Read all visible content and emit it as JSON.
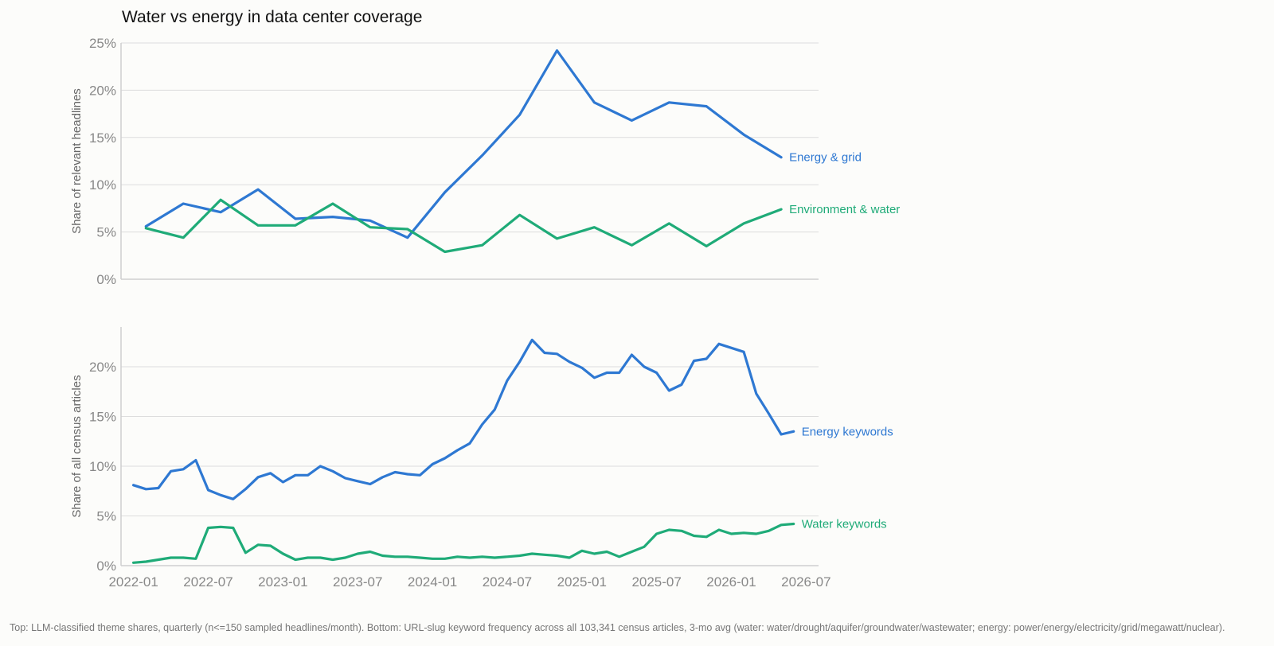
{
  "title": "Water vs energy in data center coverage",
  "caption": "Top: LLM-classified theme shares, quarterly (n<=150 sampled headlines/month). Bottom: URL-slug keyword frequency across all 103,341 census articles, 3-mo avg (water: water/drought/aquifer/groundwater/wastewater; energy: power/energy/electricity/grid/megawatt/nuclear).",
  "chart_data": [
    {
      "type": "line",
      "title": "Water vs energy in data center coverage",
      "ylabel": "Share of relevant headlines",
      "ylim": [
        0,
        25
      ],
      "y_ticks": [
        "0%",
        "5%",
        "10%",
        "15%",
        "20%",
        "25%"
      ],
      "y_tick_values": [
        0,
        5,
        10,
        15,
        20,
        25
      ],
      "grid": true,
      "legend": "direct labels at line ends (right)",
      "x_range": [
        "2021-12-01",
        "2026-08-01"
      ],
      "series": [
        {
          "name": "Energy & grid",
          "color": "#2e78d2",
          "x": [
            "2022-02",
            "2022-05",
            "2022-08",
            "2022-11",
            "2023-02",
            "2023-05",
            "2023-08",
            "2023-11",
            "2024-02",
            "2024-05",
            "2024-08",
            "2024-11",
            "2025-02",
            "2025-05",
            "2025-08",
            "2025-11",
            "2026-02",
            "2026-05"
          ],
          "values": [
            5.6,
            8.0,
            7.1,
            9.5,
            6.4,
            6.6,
            6.2,
            4.4,
            9.2,
            13.1,
            17.4,
            24.2,
            18.7,
            16.8,
            18.7,
            18.3,
            15.3,
            12.9
          ]
        },
        {
          "name": "Environment & water",
          "color": "#1fab78",
          "x": [
            "2022-02",
            "2022-05",
            "2022-08",
            "2022-11",
            "2023-02",
            "2023-05",
            "2023-08",
            "2023-11",
            "2024-02",
            "2024-05",
            "2024-08",
            "2024-11",
            "2025-02",
            "2025-05",
            "2025-08",
            "2025-11",
            "2026-02",
            "2026-05"
          ],
          "values": [
            5.4,
            4.4,
            8.4,
            5.7,
            5.7,
            8.0,
            5.5,
            5.3,
            2.9,
            3.6,
            6.8,
            4.3,
            5.5,
            3.6,
            5.9,
            3.5,
            5.9,
            7.4
          ]
        }
      ]
    },
    {
      "type": "line",
      "ylabel": "Share of all census articles",
      "ylim": [
        0,
        24
      ],
      "y_ticks": [
        "0%",
        "5%",
        "10%",
        "15%",
        "20%"
      ],
      "y_tick_values": [
        0,
        5,
        10,
        15,
        20
      ],
      "x_ticks": [
        "2022-01",
        "2022-07",
        "2023-01",
        "2023-07",
        "2024-01",
        "2024-07",
        "2025-01",
        "2025-07",
        "2026-01",
        "2026-07"
      ],
      "x_range": [
        "2021-12-01",
        "2026-08-01"
      ],
      "grid": true,
      "legend": "direct labels at line ends (right)",
      "series": [
        {
          "name": "Energy keywords",
          "color": "#2e78d2",
          "x": [
            "2022-01",
            "2022-02",
            "2022-03",
            "2022-04",
            "2022-05",
            "2022-06",
            "2022-07",
            "2022-08",
            "2022-09",
            "2022-10",
            "2022-11",
            "2022-12",
            "2023-01",
            "2023-02",
            "2023-03",
            "2023-04",
            "2023-05",
            "2023-06",
            "2023-07",
            "2023-08",
            "2023-09",
            "2023-10",
            "2023-11",
            "2023-12",
            "2024-01",
            "2024-02",
            "2024-03",
            "2024-04",
            "2024-05",
            "2024-06",
            "2024-07",
            "2024-08",
            "2024-09",
            "2024-10",
            "2024-11",
            "2024-12",
            "2025-01",
            "2025-02",
            "2025-03",
            "2025-04",
            "2025-05",
            "2025-06",
            "2025-07",
            "2025-08",
            "2025-09",
            "2025-10",
            "2025-11",
            "2025-12",
            "2026-01",
            "2026-02",
            "2026-03",
            "2026-04",
            "2026-05",
            "2026-06"
          ],
          "values": [
            8.1,
            7.7,
            7.8,
            9.5,
            9.7,
            10.6,
            7.6,
            7.1,
            6.7,
            7.7,
            8.9,
            9.3,
            8.4,
            9.1,
            9.1,
            10.0,
            9.5,
            8.8,
            8.5,
            8.2,
            8.9,
            9.4,
            9.2,
            9.1,
            10.2,
            10.8,
            11.6,
            12.3,
            14.2,
            15.7,
            18.6,
            20.5,
            22.7,
            21.4,
            21.3,
            20.5,
            19.9,
            18.9,
            19.4,
            19.4,
            21.2,
            20.0,
            19.4,
            17.6,
            18.2,
            20.6,
            20.8,
            22.3,
            21.9,
            21.5,
            17.3,
            15.3,
            13.2,
            13.5
          ]
        },
        {
          "name": "Water keywords",
          "color": "#1fab78",
          "x": [
            "2022-01",
            "2022-02",
            "2022-03",
            "2022-04",
            "2022-05",
            "2022-06",
            "2022-07",
            "2022-08",
            "2022-09",
            "2022-10",
            "2022-11",
            "2022-12",
            "2023-01",
            "2023-02",
            "2023-03",
            "2023-04",
            "2023-05",
            "2023-06",
            "2023-07",
            "2023-08",
            "2023-09",
            "2023-10",
            "2023-11",
            "2023-12",
            "2024-01",
            "2024-02",
            "2024-03",
            "2024-04",
            "2024-05",
            "2024-06",
            "2024-07",
            "2024-08",
            "2024-09",
            "2024-10",
            "2024-11",
            "2024-12",
            "2025-01",
            "2025-02",
            "2025-03",
            "2025-04",
            "2025-05",
            "2025-06",
            "2025-07",
            "2025-08",
            "2025-09",
            "2025-10",
            "2025-11",
            "2025-12",
            "2026-01",
            "2026-02",
            "2026-03",
            "2026-04",
            "2026-05",
            "2026-06"
          ],
          "values": [
            0.3,
            0.4,
            0.6,
            0.8,
            0.8,
            0.7,
            3.8,
            3.9,
            3.8,
            1.3,
            2.1,
            2.0,
            1.2,
            0.6,
            0.8,
            0.8,
            0.6,
            0.8,
            1.2,
            1.4,
            1.0,
            0.9,
            0.9,
            0.8,
            0.7,
            0.7,
            0.9,
            0.8,
            0.9,
            0.8,
            0.9,
            1.0,
            1.2,
            1.1,
            1.0,
            0.8,
            1.5,
            1.2,
            1.4,
            0.9,
            1.4,
            1.9,
            3.2,
            3.6,
            3.5,
            3.0,
            2.9,
            3.6,
            3.2,
            3.3,
            3.2,
            3.5,
            4.1,
            4.2
          ]
        }
      ]
    }
  ]
}
